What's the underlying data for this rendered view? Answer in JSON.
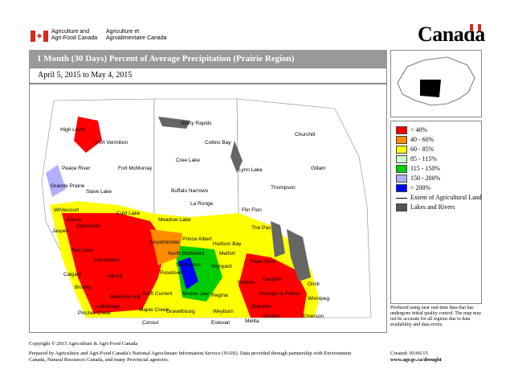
{
  "header": {
    "dept_en": [
      "Agriculture and",
      "Agri-Food Canada"
    ],
    "dept_fr": [
      "Agriculture et",
      "Agroalimentaire Canada"
    ],
    "wordmark": "Canada"
  },
  "title": "1 Month (30 Days) Percent of Average Precipitation  (Prairie Region)",
  "date_range": "April 5, 2015 to May 4, 2015",
  "legend": [
    {
      "label": "< 40%",
      "color": "#ff0000"
    },
    {
      "label": "40 - 60%",
      "color": "#ff8c00"
    },
    {
      "label": "60 - 85%",
      "color": "#ffff00"
    },
    {
      "label": "85 - 115%",
      "color": "#ccffcc"
    },
    {
      "label": "115 - 150%",
      "color": "#00cc00"
    },
    {
      "label": "150 - 200%",
      "color": "#b0b0ff"
    },
    {
      "label": "> 200%",
      "color": "#0000ff"
    }
  ],
  "legend_lines": [
    {
      "label": "Extent of Agricultural Land",
      "symbol": "line"
    },
    {
      "label": "Lakes and Rivers",
      "symbol": "gray-box",
      "color": "#555555"
    }
  ],
  "cities": [
    "High Level",
    "Fort Vermilion",
    "Stony Rapids",
    "Churchill",
    "Collins Bay",
    "Peace River",
    "Fort McMurray",
    "Cree Lake",
    "Lynn Lake",
    "Gillam",
    "Grande Prairie",
    "Slave Lake",
    "Buffalo Narrows",
    "Thompson",
    "La Ronge",
    "Whitecourt",
    "Cold Lake",
    "Flin Flon",
    "Edson",
    "Meadow Lake",
    "Jasper",
    "Edmonton",
    "Lloydminster",
    "Prince Albert",
    "Hudson Bay",
    "The Pas",
    "Red Deer",
    "North Battleford",
    "Melfort",
    "Swan River",
    "Coronation",
    "Saskatoon",
    "Wynyard",
    "Dauphin",
    "Calgary",
    "Hanna",
    "Rosetown",
    "Gimli",
    "Brooks",
    "Swift Current",
    "Moose Jaw",
    "Regina",
    "Yorkton",
    "Portage la Prairie",
    "Winnipeg",
    "Medicine Hat",
    "Lethbridge",
    "Pincher Creek",
    "Maple Creek",
    "Gravelbourg",
    "Weyburn",
    "Brandon",
    "Morden",
    "Melita",
    "Estevan",
    "Emerson",
    "Consul"
  ],
  "disclaimer": "Produced using near real-time data that has undergone initial quality control.  The map may not be accurate for all regions due to data availability and data errors.",
  "copyright": "Copyright © 2015 Agriculture & Agri-Food Canada",
  "footer_left": "Prepared by Agriculture and Agri-Food Canada's National Agroclimate Information Service (NAIS).   Data provided through partnership with Environment Canada, Natural Resources Canada, and many Provincial agencies.",
  "created": "Created: 05/06/15",
  "website": "www.agr.gc.ca/drought"
}
